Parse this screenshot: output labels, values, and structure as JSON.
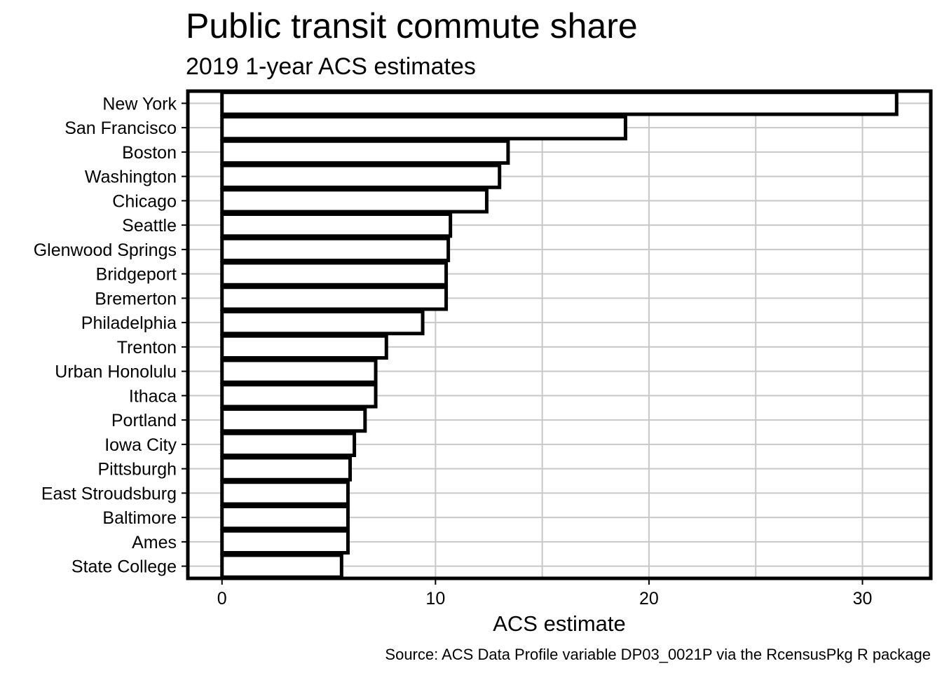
{
  "chart_data": {
    "type": "bar",
    "orientation": "horizontal",
    "title": "Public transit commute share",
    "subtitle": "2019 1-year ACS estimates",
    "xlabel": "ACS estimate",
    "ylabel": "",
    "caption": "Source: ACS Data Profile variable DP03_0021P via the RcensusPkg R package",
    "categories": [
      "New York",
      "San Francisco",
      "Boston",
      "Washington",
      "Chicago",
      "Seattle",
      "Glenwood Springs",
      "Bridgeport",
      "Bremerton",
      "Philadelphia",
      "Trenton",
      "Urban Honolulu",
      "Ithaca",
      "Portland",
      "Iowa City",
      "Pittsburgh",
      "East Stroudsburg",
      "Baltimore",
      "Ames",
      "State College"
    ],
    "values": [
      31.6,
      18.9,
      13.4,
      13.0,
      12.4,
      10.7,
      10.6,
      10.5,
      10.5,
      9.4,
      7.7,
      7.2,
      7.2,
      6.7,
      6.2,
      6.0,
      5.9,
      5.9,
      5.9,
      5.6
    ],
    "x_ticks": [
      "0",
      "10",
      "20",
      "30"
    ],
    "xlim": [
      -1.6,
      33.2
    ],
    "grid": true,
    "colors": {
      "bar_fill": "#ffffff",
      "bar_stroke": "#000000",
      "grid": "#c8c8c8",
      "panel_border": "#000000"
    }
  }
}
